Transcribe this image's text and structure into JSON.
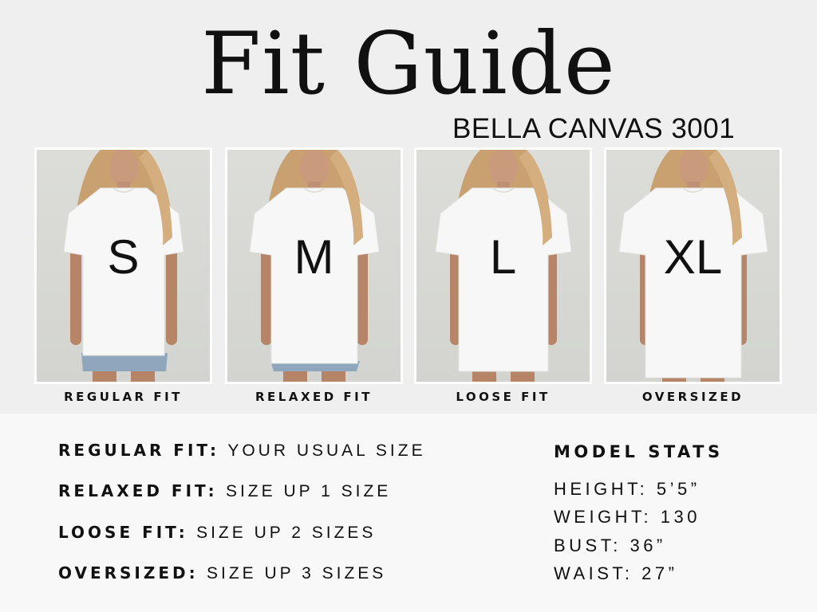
{
  "title": "Fit Guide",
  "subtitle": "BELLA CANVAS 3001",
  "cards": [
    {
      "size": "S",
      "caption": "REGULAR FIT"
    },
    {
      "size": "M",
      "caption": "RELAXED FIT"
    },
    {
      "size": "L",
      "caption": "LOOSE FIT"
    },
    {
      "size": "XL",
      "caption": "OVERSIZED"
    }
  ],
  "fits": [
    {
      "label": "REGULAR FIT:",
      "value": "YOUR USUAL SIZE"
    },
    {
      "label": "RELAXED FIT:",
      "value": "SIZE UP 1 SIZE"
    },
    {
      "label": "LOOSE FIT:",
      "value": "SIZE UP 2 SIZES"
    },
    {
      "label": "OVERSIZED:",
      "value": "SIZE UP 3 SIZES"
    }
  ],
  "model_stats": {
    "heading": "MODEL STATS",
    "items": [
      "HEIGHT: 5’5”",
      "WEIGHT: 130",
      "BUST: 36”",
      "WAIST: 27”"
    ]
  }
}
